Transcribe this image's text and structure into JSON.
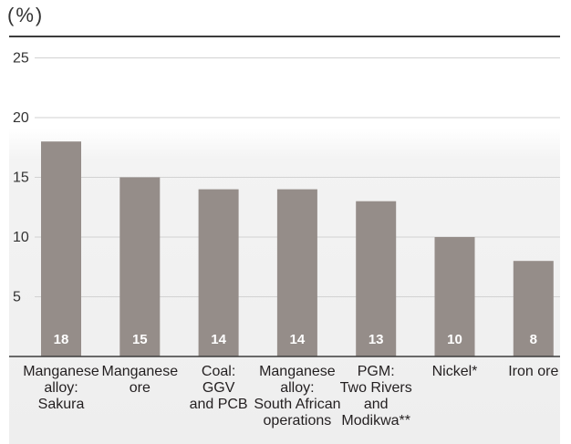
{
  "unit_label": "(%)",
  "chart_data": {
    "type": "bar",
    "categories": [
      [
        "Manganese",
        "alloy:",
        "Sakura"
      ],
      [
        "Manganese",
        "ore"
      ],
      [
        "Coal:",
        "GGV",
        "and PCB"
      ],
      [
        "Manganese",
        "alloy:",
        "South African",
        "operations"
      ],
      [
        "PGM:",
        "Two Rivers",
        "and",
        "Modikwa**"
      ],
      [
        "Nickel*"
      ],
      [
        "Iron ore"
      ]
    ],
    "values": [
      18,
      15,
      14,
      14,
      13,
      10,
      8
    ],
    "data_labels": [
      "18",
      "15",
      "14",
      "14",
      "13",
      "10",
      "8"
    ],
    "yticks": [
      5,
      10,
      15,
      20,
      25
    ],
    "ylim": [
      0,
      25
    ],
    "grid": true,
    "colors": {
      "bar": "#958d89",
      "grid": "#d2d2d2",
      "axis": "#3c3c3c"
    }
  }
}
